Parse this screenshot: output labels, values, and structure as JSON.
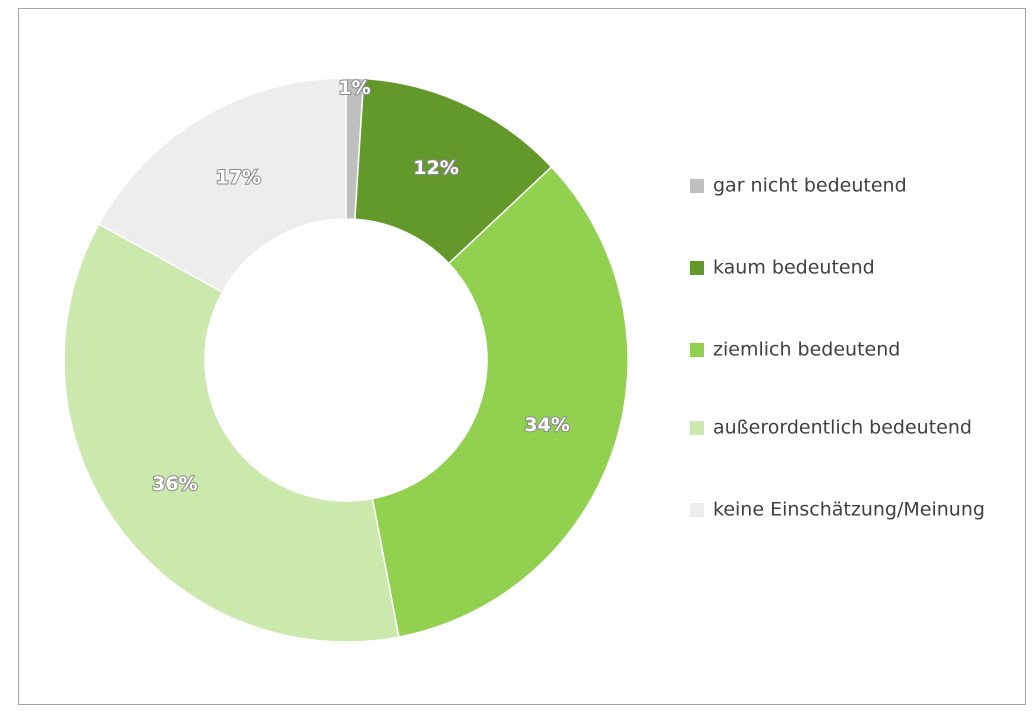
{
  "chart_data": {
    "type": "donut",
    "categories": [
      "gar nicht bedeutend",
      "kaum bedeutend",
      "ziemlich bedeutend",
      "außerordentlich bedeutend",
      "keine Einschätzung/Meinung"
    ],
    "values": [
      1,
      12,
      34,
      36,
      17
    ],
    "value_labels": [
      "1%",
      "12%",
      "34%",
      "36%",
      "17%"
    ],
    "colors": [
      "#bfbfbf",
      "#63992b",
      "#92d050",
      "#cce9ad",
      "#ededed"
    ],
    "legend": "right"
  }
}
